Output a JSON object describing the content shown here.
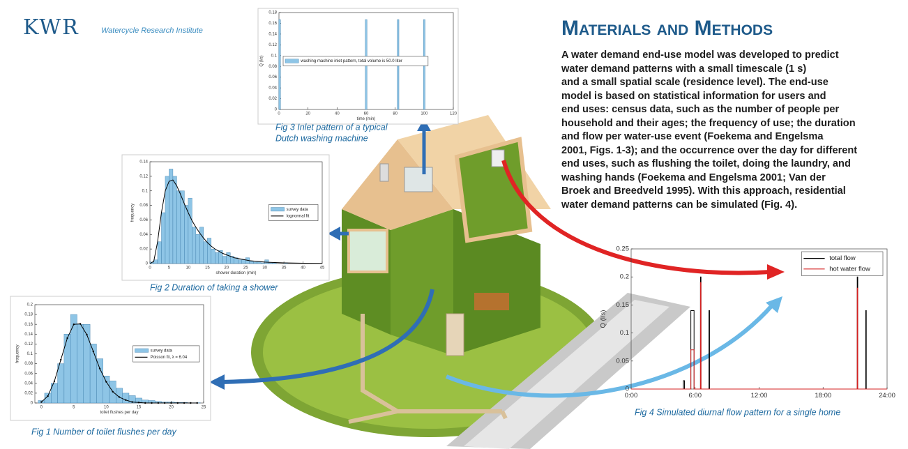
{
  "logo": {
    "mark": "KWR",
    "tagline": "Watercycle Research Institute"
  },
  "section": {
    "title": "Materials and Methods",
    "lines": [
      "A water demand end-use model was developed to predict",
      "water demand patterns with a small timescale (1 s)",
      "and a small spatial scale (residence level). The end-use",
      "model is based on statistical information for users and",
      "end uses: census data, such as the number of people per",
      "household and their ages; the frequency of use; the duration",
      "and flow per water-use event (Foekema and Engelsma",
      "2001, Figs. 1-3); and the occurrence over the day for different",
      "end uses, such as flushing the toilet, doing the laundry, and",
      "washing hands (Foekema and Engelsma 2001; Van der",
      "Broek and Breedveld 1995). With this approach, residential",
      "water demand patterns can be simulated (Fig. 4)."
    ]
  },
  "chart_data": [
    {
      "type": "histogram",
      "caption": [
        "Fig 1  Number of toilet flushes per day"
      ],
      "xlabel": "toilet flushes per day",
      "ylabel": "frequency",
      "bins": [
        -0.5,
        0.5,
        1.5,
        2.5,
        3.5,
        4.5,
        5.5,
        6.5,
        7.5,
        8.5,
        9.5,
        10.5,
        11.5,
        12.5,
        13.5,
        14.5,
        15.5,
        16.5,
        17.5,
        18.5,
        19.5,
        20.5,
        21.5,
        22.5,
        23.5,
        24.5
      ],
      "series": [
        {
          "name": "survey data",
          "color": "#8ec5e6",
          "values": [
            0.005,
            0.02,
            0.04,
            0.08,
            0.14,
            0.18,
            0.16,
            0.16,
            0.12,
            0.09,
            0.055,
            0.045,
            0.03,
            0.02,
            0.015,
            0.01,
            0.006,
            0.005,
            0.003,
            0.002,
            0.002,
            0.001,
            0.001,
            0.0005,
            0.0005
          ]
        },
        {
          "name": "Poisson fit, λ = 6.04",
          "color": "#000000",
          "type": "line",
          "marker": "dot",
          "x": [
            0,
            1,
            2,
            3,
            4,
            5,
            6,
            7,
            8,
            9,
            10,
            11,
            12,
            13,
            14,
            15,
            16,
            17,
            18,
            19,
            20,
            21,
            22,
            23,
            24
          ],
          "values": [
            0.002,
            0.014,
            0.044,
            0.088,
            0.132,
            0.16,
            0.161,
            0.139,
            0.105,
            0.07,
            0.043,
            0.023,
            0.012,
            0.006,
            0.002,
            0.001,
            0,
            0,
            0,
            0,
            0,
            0,
            0,
            0,
            0
          ]
        }
      ],
      "xlim": [
        -1,
        25
      ],
      "xticks": [
        0,
        5,
        10,
        15,
        20,
        25
      ],
      "ylim": [
        0,
        0.2
      ],
      "yticks": [
        0,
        0.02,
        0.04,
        0.06,
        0.08,
        0.1,
        0.12,
        0.14,
        0.16,
        0.18,
        0.2
      ],
      "legend": "center right"
    },
    {
      "type": "histogram",
      "caption": [
        "Fig 2  Duration of taking a shower"
      ],
      "xlabel": "shower duration (min)",
      "ylabel": "frequency",
      "bins": [
        0,
        1,
        2,
        3,
        4,
        5,
        6,
        7,
        8,
        9,
        10,
        11,
        12,
        13,
        14,
        15,
        16,
        17,
        18,
        19,
        20,
        21,
        22,
        23,
        24,
        25,
        26,
        27,
        28,
        29,
        30,
        31,
        32,
        33,
        34,
        35,
        36,
        37,
        38,
        39,
        40,
        41,
        42,
        43,
        44,
        45
      ],
      "series": [
        {
          "name": "survey data",
          "color": "#8ec5e6",
          "values": [
            0.002,
            0.005,
            0.03,
            0.07,
            0.12,
            0.13,
            0.12,
            0.1,
            0.1,
            0.08,
            0.09,
            0.05,
            0.04,
            0.05,
            0.03,
            0.035,
            0.02,
            0.015,
            0.018,
            0.01,
            0.015,
            0.01,
            0.008,
            0.005,
            0.005,
            0.008,
            0.003,
            0.002,
            0.002,
            0.001,
            0.005,
            0.001,
            0.001,
            0,
            0,
            0.001,
            0,
            0,
            0,
            0,
            0,
            0,
            0,
            0,
            0
          ]
        },
        {
          "name": "lognormal fit",
          "color": "#000000",
          "type": "line",
          "x": [
            0,
            1,
            2,
            3,
            4,
            5,
            6,
            7,
            8,
            9,
            10,
            11,
            12,
            13,
            14,
            15,
            16,
            17,
            18,
            19,
            20,
            22,
            24,
            26,
            28,
            30,
            35,
            40,
            45
          ],
          "values": [
            0,
            0.003,
            0.03,
            0.07,
            0.1,
            0.113,
            0.115,
            0.107,
            0.095,
            0.082,
            0.07,
            0.059,
            0.05,
            0.042,
            0.035,
            0.029,
            0.024,
            0.02,
            0.017,
            0.014,
            0.012,
            0.008,
            0.006,
            0.004,
            0.003,
            0.002,
            0.001,
            0.0005,
            0.0002
          ]
        }
      ],
      "xlim": [
        0,
        45
      ],
      "xticks": [
        0,
        5,
        10,
        15,
        20,
        25,
        30,
        35,
        40,
        45
      ],
      "ylim": [
        0,
        0.14
      ],
      "yticks": [
        0,
        0.02,
        0.04,
        0.06,
        0.08,
        0.1,
        0.12,
        0.14
      ],
      "legend": "center right"
    },
    {
      "type": "bar",
      "caption": [
        "Fig 3  Inlet pattern of a typical",
        "Dutch washing machine"
      ],
      "xlabel": "time (min)",
      "ylabel": "Q (l/s)",
      "x": [
        0.5,
        60,
        82,
        100
      ],
      "series": [
        {
          "name": "washing machine inlet pattern, total volume is 50.0 liter",
          "color": "#8ec5e6",
          "values": [
            0.167,
            0.167,
            0.167,
            0.167
          ]
        }
      ],
      "xlim": [
        0,
        120
      ],
      "xticks": [
        0,
        20,
        40,
        60,
        80,
        100,
        120
      ],
      "ylim": [
        0,
        0.18
      ],
      "yticks": [
        0,
        0.02,
        0.04,
        0.06,
        0.08,
        0.1,
        0.12,
        0.14,
        0.16,
        0.18
      ],
      "legend": "center left"
    },
    {
      "type": "line",
      "caption": [
        "Fig 4  Simulated diurnal flow pattern for a single home"
      ],
      "ylabel": "Q (l/s)",
      "x": [
        0,
        4.9,
        4.9,
        5.0,
        5.0,
        5.6,
        5.6,
        5.9,
        5.9,
        6.5,
        6.5,
        6.55,
        6.55,
        7.3,
        7.3,
        7.35,
        7.35,
        21.2,
        21.2,
        21.25,
        21.25,
        22,
        22,
        22.05,
        22.05,
        24
      ],
      "series": [
        {
          "name": "total flow",
          "color": "#000000",
          "values": [
            0,
            0,
            0.015,
            0.015,
            0,
            0,
            0.14,
            0.14,
            0,
            0,
            0.2,
            0.2,
            0,
            0,
            0.14,
            0.14,
            0,
            0,
            0.2,
            0.2,
            0,
            0,
            0.14,
            0.14,
            0,
            0
          ]
        },
        {
          "name": "hot water flow",
          "color": "#d42020",
          "values": [
            0,
            0,
            0,
            0,
            0,
            0,
            0.07,
            0.07,
            0,
            0,
            0.19,
            0.19,
            0,
            0,
            0,
            0,
            0,
            0,
            0.18,
            0.18,
            0,
            0,
            0,
            0,
            0,
            0
          ]
        }
      ],
      "xlim": [
        0,
        24
      ],
      "xticks": [
        {
          "value": 0,
          "label": "0:00"
        },
        {
          "value": 6,
          "label": "6:00"
        },
        {
          "value": 12,
          "label": "12:00"
        },
        {
          "value": 18,
          "label": "18:00"
        },
        {
          "value": 24,
          "label": "24:00"
        }
      ],
      "ylim": [
        0,
        0.25
      ],
      "yticks": [
        0,
        0.05,
        0.1,
        0.15,
        0.2,
        0.25
      ],
      "legend": "upper right"
    }
  ]
}
